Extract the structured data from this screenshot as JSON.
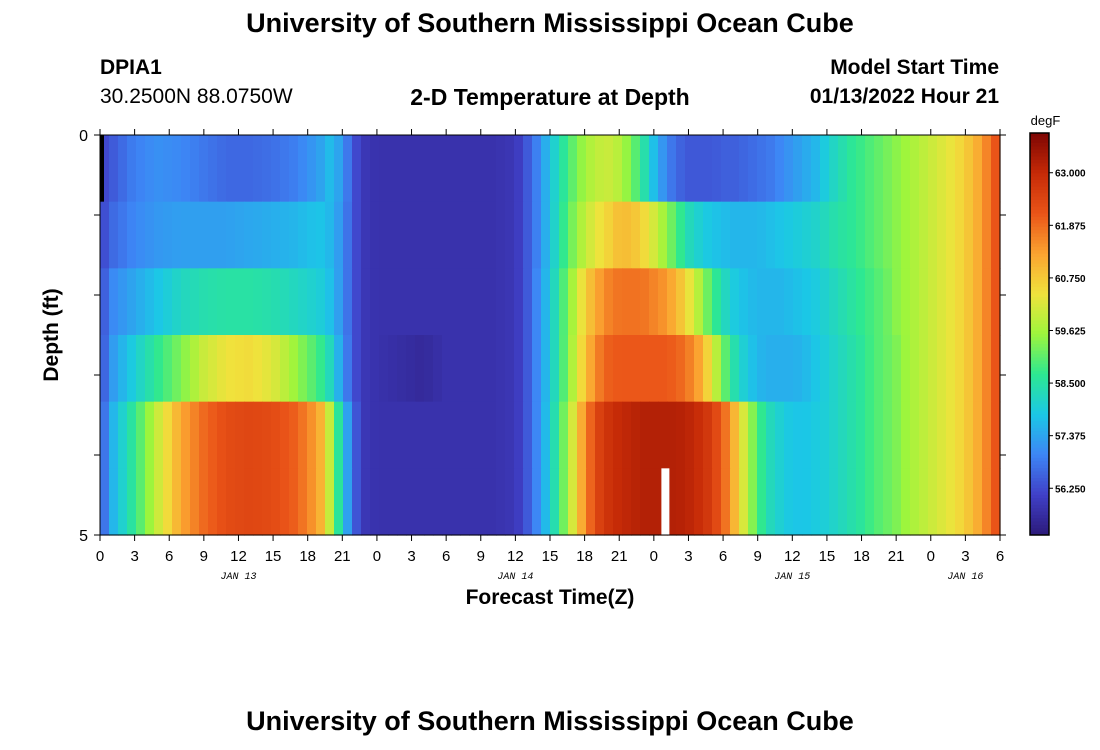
{
  "header": {
    "title": "University of Southern Mississippi Ocean Cube",
    "station_id": "DPIA1",
    "station_coords": "30.2500N  88.0750W",
    "plot_title": "2-D Temperature at Depth",
    "model_start_label": "Model Start Time",
    "model_start_value": "01/13/2022 Hour 21"
  },
  "footer": {
    "title": "University of Southern Mississippi Ocean Cube"
  },
  "chart_data": {
    "type": "heatmap",
    "title": "2-D Temperature at Depth",
    "xlabel": "Forecast Time(Z)",
    "ylabel": "Depth (ft)",
    "x_ticks": [
      "0",
      "3",
      "6",
      "9",
      "12",
      "15",
      "18",
      "21",
      "0",
      "3",
      "6",
      "9",
      "12",
      "15",
      "18",
      "21",
      "0",
      "3",
      "6",
      "9",
      "12",
      "15",
      "18",
      "21",
      "0",
      "3",
      "6"
    ],
    "x_hours_from_jan13_00z": [
      0,
      3,
      6,
      9,
      12,
      15,
      18,
      21,
      24,
      27,
      30,
      33,
      36,
      39,
      42,
      45,
      48,
      51,
      54,
      57,
      60,
      63,
      66,
      69,
      72,
      75,
      78
    ],
    "date_labels": [
      {
        "label": "JAN 13",
        "hour": 12
      },
      {
        "label": "JAN 14",
        "hour": 36
      },
      {
        "label": "JAN 15",
        "hour": 60
      },
      {
        "label": "JAN 16",
        "hour": 75
      }
    ],
    "y_ticks": [
      "0",
      "5"
    ],
    "ylim": [
      0,
      5
    ],
    "xlim": [
      0,
      78
    ],
    "depth_levels_ft": [
      0,
      1,
      2,
      3,
      4,
      5
    ],
    "colorbar": {
      "unit": "degF",
      "min": 55.25,
      "max": 63.85,
      "labels": [
        "63.000",
        "61.875",
        "60.750",
        "59.625",
        "58.500",
        "57.375",
        "56.250"
      ],
      "stops": [
        "#2c1a7a",
        "#4040c8",
        "#3d86f5",
        "#1bc8e6",
        "#2de891",
        "#9ef53c",
        "#f0e23c",
        "#fba330",
        "#ea5418",
        "#c52a07",
        "#7d0503"
      ]
    },
    "time_knots_hours": [
      0,
      1,
      3,
      5,
      7,
      9,
      11,
      13,
      15,
      17,
      19,
      20,
      21,
      22,
      23,
      24,
      26,
      28,
      30,
      32,
      34,
      36,
      37,
      38,
      39,
      40,
      41,
      42,
      43,
      44,
      45,
      46,
      47,
      48,
      49,
      50,
      51,
      52,
      53,
      54,
      55,
      56,
      57,
      58,
      59,
      60,
      61,
      62,
      63,
      64,
      65,
      66,
      67,
      68,
      69,
      70,
      71,
      72,
      73,
      74,
      75,
      76,
      77,
      78
    ],
    "temperature_degF": [
      [
        56.1,
        56.4,
        56.9,
        57.1,
        57.0,
        56.8,
        56.6,
        56.6,
        56.7,
        56.9,
        57.3,
        57.7,
        57.2,
        56.3,
        55.9,
        55.8,
        55.8,
        55.8,
        55.8,
        55.8,
        55.8,
        55.9,
        56.4,
        57.0,
        57.8,
        58.5,
        59.1,
        59.6,
        59.9,
        60.0,
        59.8,
        59.3,
        58.6,
        57.7,
        57.0,
        56.6,
        56.4,
        56.4,
        56.4,
        56.5,
        56.5,
        56.6,
        56.7,
        56.8,
        57.0,
        57.2,
        57.4,
        57.6,
        58.0,
        58.3,
        58.6,
        58.8,
        59.0,
        59.2,
        59.4,
        59.6,
        59.8,
        60.0,
        60.2,
        60.4,
        60.7,
        61.1,
        61.7,
        62.4
      ],
      [
        56.1,
        56.6,
        57.0,
        57.2,
        57.3,
        57.3,
        57.3,
        57.4,
        57.5,
        57.6,
        57.8,
        57.6,
        57.1,
        56.3,
        55.9,
        55.8,
        55.8,
        55.8,
        55.8,
        55.8,
        55.8,
        55.9,
        56.4,
        57.0,
        57.8,
        58.6,
        59.3,
        59.9,
        60.3,
        60.6,
        60.9,
        60.9,
        60.6,
        60.1,
        59.5,
        58.9,
        58.3,
        58.0,
        57.8,
        57.7,
        57.6,
        57.6,
        57.6,
        57.7,
        57.8,
        57.9,
        58.0,
        58.1,
        58.3,
        58.5,
        58.6,
        58.8,
        59.0,
        59.2,
        59.4,
        59.6,
        59.8,
        60.0,
        60.2,
        60.4,
        60.7,
        61.1,
        61.7,
        62.4
      ],
      [
        56.2,
        57.0,
        57.4,
        57.8,
        58.2,
        58.4,
        58.5,
        58.5,
        58.4,
        58.2,
        58.0,
        57.7,
        57.1,
        56.3,
        55.9,
        55.8,
        55.8,
        55.8,
        55.8,
        55.8,
        55.8,
        55.9,
        56.4,
        57.1,
        57.9,
        58.8,
        59.7,
        60.6,
        61.2,
        61.6,
        61.8,
        61.8,
        61.8,
        61.6,
        61.4,
        61.0,
        60.4,
        59.7,
        58.9,
        58.3,
        57.9,
        57.7,
        57.6,
        57.6,
        57.6,
        57.7,
        57.8,
        57.9,
        58.1,
        58.3,
        58.5,
        58.7,
        58.9,
        59.1,
        59.4,
        59.6,
        59.8,
        60.0,
        60.2,
        60.4,
        60.7,
        61.1,
        61.7,
        62.4
      ],
      [
        56.2,
        57.2,
        58.0,
        58.7,
        59.3,
        60.0,
        60.4,
        60.5,
        60.2,
        59.5,
        58.8,
        58.2,
        57.2,
        56.3,
        55.9,
        55.8,
        55.7,
        55.6,
        55.8,
        55.8,
        55.8,
        55.9,
        56.4,
        57.1,
        57.9,
        58.8,
        59.8,
        60.8,
        61.6,
        62.0,
        62.1,
        62.1,
        62.1,
        62.1,
        62.1,
        62.0,
        61.7,
        61.2,
        60.3,
        59.2,
        58.4,
        57.9,
        57.6,
        57.5,
        57.5,
        57.5,
        57.6,
        57.8,
        58.0,
        58.2,
        58.4,
        58.6,
        58.9,
        59.1,
        59.3,
        59.6,
        59.8,
        60.0,
        60.2,
        60.4,
        60.7,
        61.1,
        61.7,
        62.4
      ],
      [
        56.3,
        57.5,
        58.7,
        60.0,
        61.2,
        61.9,
        62.3,
        62.4,
        62.3,
        62.0,
        61.2,
        59.8,
        58.0,
        56.5,
        55.9,
        55.8,
        55.8,
        55.8,
        55.8,
        55.8,
        55.8,
        55.9,
        56.4,
        57.1,
        58.0,
        59.0,
        60.2,
        61.5,
        62.4,
        62.8,
        63.0,
        63.1,
        63.2,
        63.2,
        63.2,
        63.2,
        63.1,
        62.9,
        62.6,
        62.0,
        61.0,
        59.9,
        58.9,
        58.3,
        58.0,
        57.8,
        57.8,
        57.9,
        58.0,
        58.2,
        58.4,
        58.6,
        58.9,
        59.1,
        59.3,
        59.6,
        59.8,
        60.0,
        60.2,
        60.4,
        60.7,
        61.1,
        61.7,
        62.4
      ],
      [
        56.3,
        57.5,
        58.7,
        60.0,
        61.2,
        61.9,
        62.3,
        62.4,
        62.3,
        62.0,
        61.2,
        59.8,
        58.0,
        56.5,
        55.9,
        55.8,
        55.8,
        55.8,
        55.8,
        55.8,
        55.8,
        55.9,
        56.4,
        57.1,
        58.0,
        59.0,
        60.2,
        61.5,
        62.4,
        62.8,
        63.0,
        63.1,
        63.2,
        63.2,
        63.2,
        63.2,
        63.1,
        62.9,
        62.6,
        62.0,
        61.0,
        59.9,
        58.9,
        58.3,
        58.0,
        57.8,
        57.8,
        57.9,
        58.0,
        58.2,
        58.4,
        58.6,
        58.9,
        59.1,
        59.3,
        59.6,
        59.8,
        60.0,
        60.2,
        60.4,
        60.7,
        61.1,
        61.7,
        62.4
      ]
    ],
    "missing_data_hour": 49,
    "grid": false,
    "legend": "colorbar-right"
  }
}
